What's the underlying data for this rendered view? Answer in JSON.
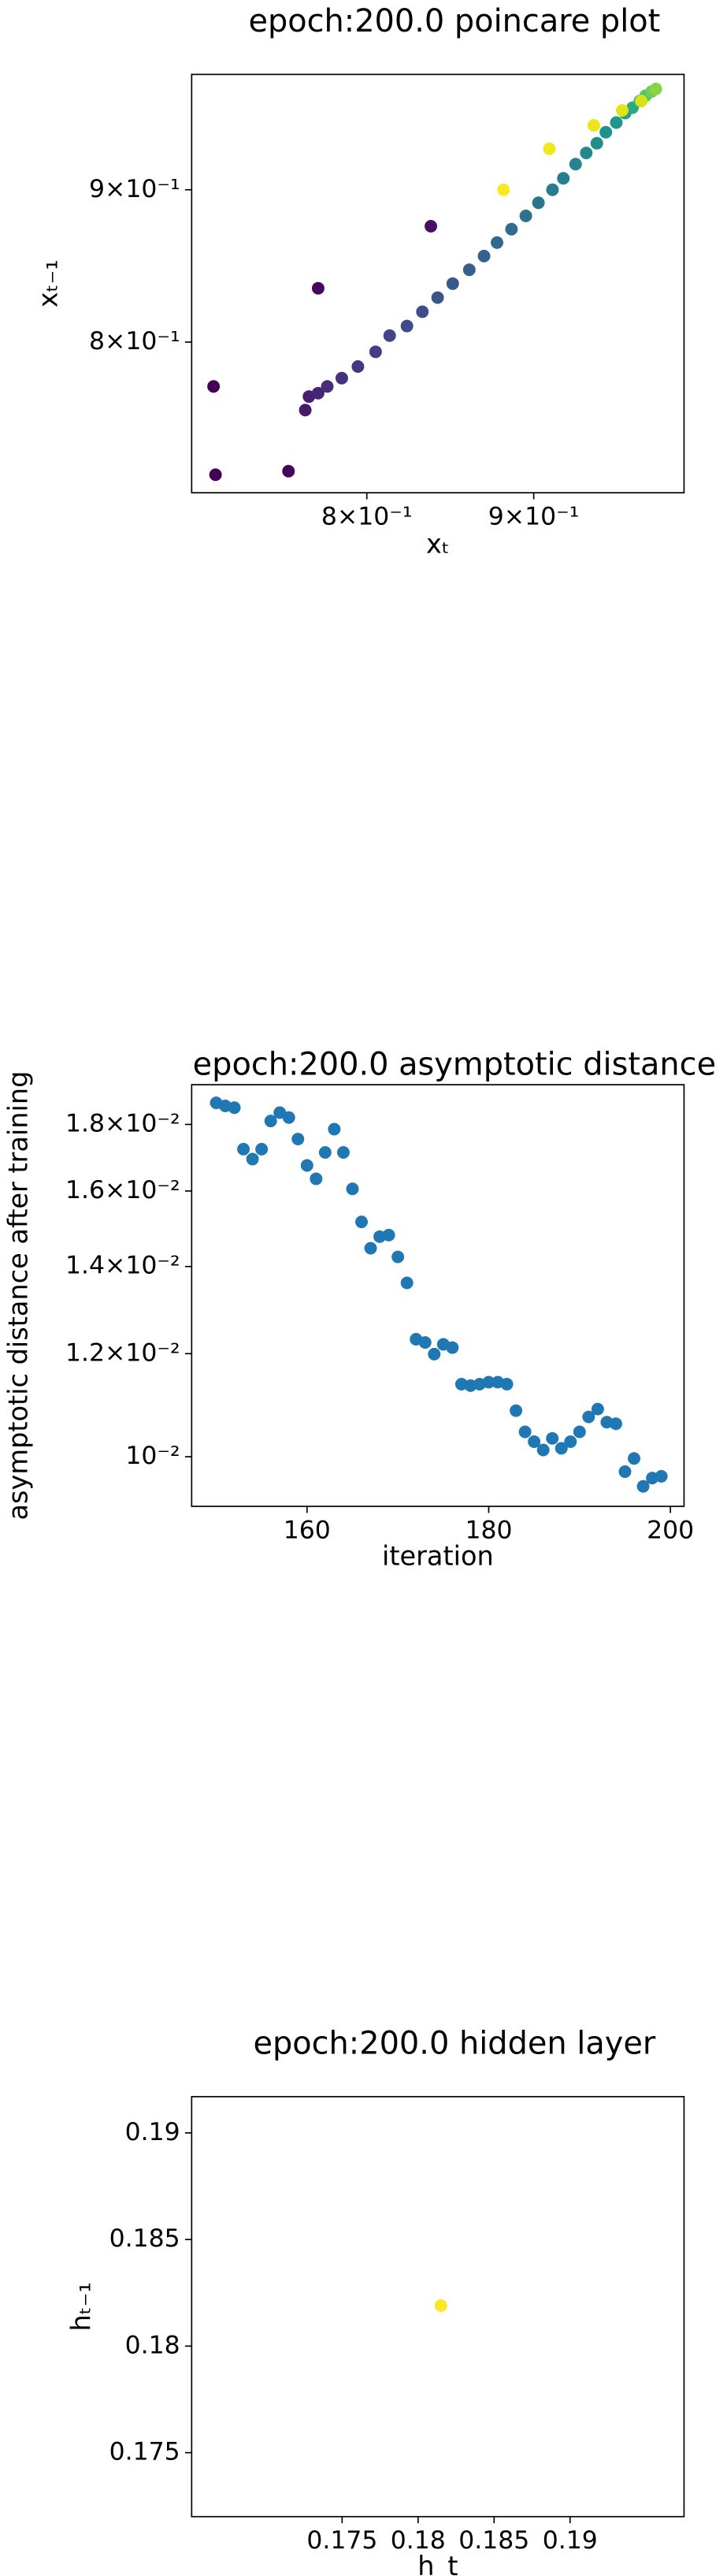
{
  "chart_data": [
    {
      "type": "scatter",
      "title": "epoch:200.0 poincare plot",
      "x_label": "xₜ",
      "y_label": "xₜ₋₁",
      "xscale": "log",
      "yscale": "log",
      "xlim": [
        0.707,
        1.0007
      ],
      "ylim": [
        0.712,
        0.984
      ],
      "xticks": [
        {
          "value": 0.8,
          "label": "8×10⁻¹"
        },
        {
          "value": 0.9,
          "label": "9×10⁻¹"
        }
      ],
      "yticks": [
        {
          "value": 0.8,
          "label": "8×10⁻¹"
        },
        {
          "value": 0.9,
          "label": "9×10⁻¹"
        }
      ],
      "x": [
        0.718,
        0.719,
        0.757,
        0.773,
        0.837,
        0.766,
        0.768,
        0.773,
        0.778,
        0.786,
        0.795,
        0.805,
        0.813,
        0.823,
        0.832,
        0.841,
        0.85,
        0.86,
        0.869,
        0.877,
        0.886,
        0.895,
        0.903,
        0.912,
        0.919,
        0.927,
        0.934,
        0.941,
        0.947,
        0.954,
        0.96,
        0.965,
        0.97,
        0.974,
        0.978,
        0.981,
        0.881,
        0.91,
        0.939,
        0.958,
        0.971
      ],
      "values": [
        0.773,
        0.722,
        0.724,
        0.834,
        0.875,
        0.759,
        0.767,
        0.769,
        0.773,
        0.778,
        0.785,
        0.794,
        0.804,
        0.81,
        0.819,
        0.828,
        0.837,
        0.846,
        0.855,
        0.864,
        0.873,
        0.882,
        0.891,
        0.9,
        0.908,
        0.918,
        0.926,
        0.933,
        0.941,
        0.948,
        0.955,
        0.959,
        0.964,
        0.968,
        0.971,
        0.973,
        0.9,
        0.929,
        0.946,
        0.957,
        0.964
      ],
      "colors": [
        "#440154",
        "#440154",
        "#450559",
        "#46085c",
        "#471063",
        "#481a6c",
        "#482071",
        "#472575",
        "#472d7b",
        "#46327e",
        "#453882",
        "#433e85",
        "#414487",
        "#3f4a8a",
        "#3c4f8a",
        "#3a548c",
        "#375a8c",
        "#355f8d",
        "#33638d",
        "#31688e",
        "#2f6c8e",
        "#2d718e",
        "#2b758e",
        "#297a8e",
        "#277f8e",
        "#25848e",
        "#23888e",
        "#218d8c",
        "#1f928c",
        "#20978a",
        "#23a086",
        "#2ca883",
        "#3bb67b",
        "#52c569",
        "#6ccd5a",
        "#86d549",
        "#fde725",
        "#f4e61e",
        "#ece51b",
        "#e2e418",
        "#d8e219"
      ]
    },
    {
      "type": "scatter",
      "title": "epoch:200.0 asymptotic distance",
      "x_label": "iteration",
      "y_label": "asymptotic distance after training",
      "xscale": "linear",
      "yscale": "log",
      "xlim": [
        147.3,
        201.5
      ],
      "ylim": [
        0.00916,
        0.01931
      ],
      "xticks": [
        160,
        180,
        200
      ],
      "yticks": [
        {
          "value": 0.01,
          "label": "10⁻²"
        },
        {
          "value": 0.012,
          "label": "1.2×10⁻²"
        },
        {
          "value": 0.014,
          "label": "1.4×10⁻²"
        },
        {
          "value": 0.016,
          "label": "1.6×10⁻²"
        },
        {
          "value": 0.018,
          "label": "1.8×10⁻²"
        }
      ],
      "x": [
        150,
        151,
        152,
        153,
        154,
        155,
        156,
        157,
        158,
        159,
        160,
        161,
        162,
        163,
        164,
        165,
        166,
        167,
        168,
        169,
        170,
        171,
        172,
        173,
        174,
        175,
        176,
        177,
        178,
        179,
        180,
        181,
        182,
        183,
        184,
        185,
        186,
        187,
        188,
        189,
        190,
        191,
        192,
        193,
        194,
        195,
        196,
        197,
        198,
        199
      ],
      "values": [
        0.0187,
        0.0186,
        0.01854,
        0.01723,
        0.01693,
        0.01723,
        0.01811,
        0.01838,
        0.01822,
        0.01754,
        0.01674,
        0.01635,
        0.01713,
        0.01785,
        0.01713,
        0.01606,
        0.01515,
        0.01446,
        0.01476,
        0.0148,
        0.01424,
        0.0136,
        0.01231,
        0.01224,
        0.01199,
        0.0122,
        0.01213,
        0.01137,
        0.01134,
        0.01137,
        0.01141,
        0.01141,
        0.01137,
        0.01085,
        0.01045,
        0.01027,
        0.01012,
        0.01033,
        0.01015,
        0.01027,
        0.01045,
        0.01073,
        0.01088,
        0.01063,
        0.0106,
        0.00974,
        0.00997,
        0.00949,
        0.00963,
        0.00966
      ],
      "color": "#1f77b4"
    },
    {
      "type": "scatter",
      "title": "epoch:200.0 hidden layer",
      "x_label": "h_t",
      "y_label": "hₜ₋₁",
      "xscale": "linear",
      "yscale": "linear",
      "xlim": [
        0.1651,
        0.1975
      ],
      "ylim": [
        0.172,
        0.1917
      ],
      "xticks": [
        0.175,
        0.18,
        0.185,
        0.19
      ],
      "yticks": [
        0.175,
        0.18,
        0.185,
        0.19
      ],
      "x": [
        0.1815
      ],
      "values": [
        0.1819
      ],
      "color": "#fde725"
    }
  ]
}
